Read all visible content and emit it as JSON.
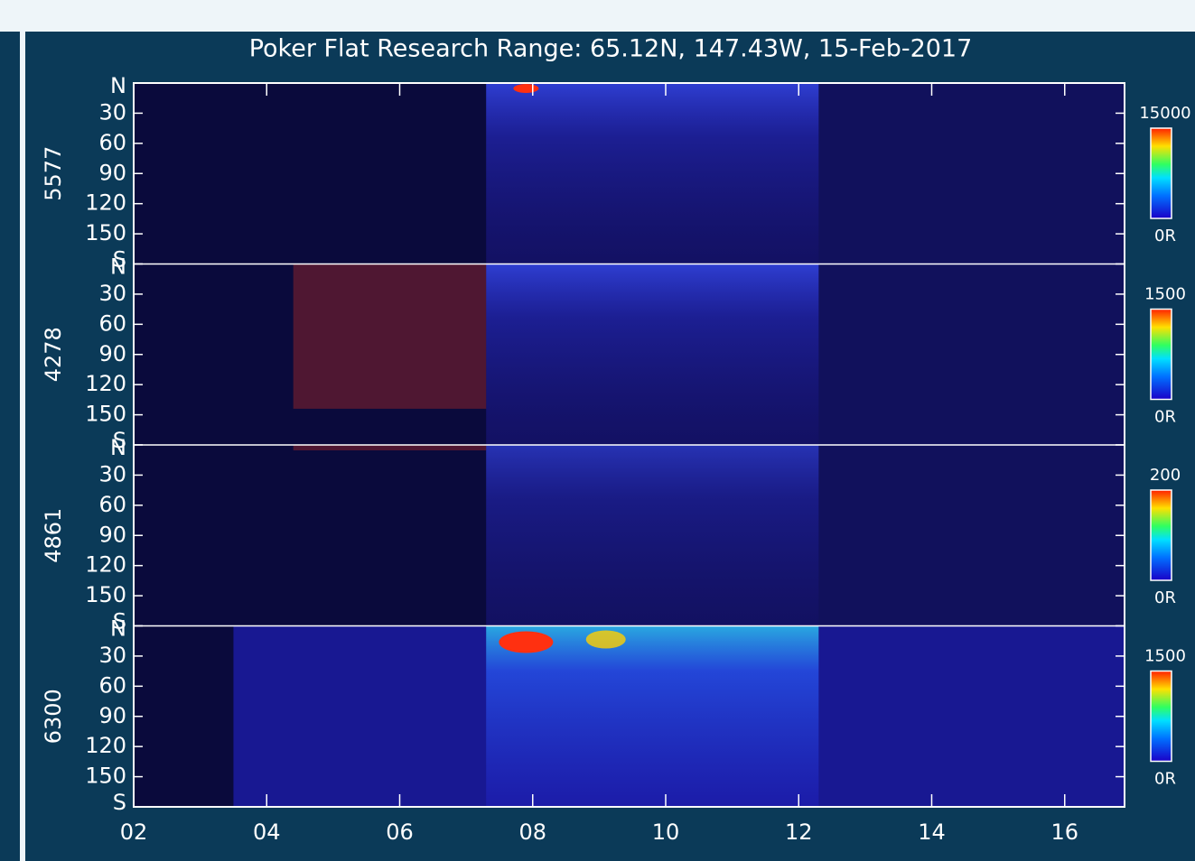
{
  "chart_data": {
    "type": "keogram",
    "title": "Poker Flat Research Range: 65.12N, 147.43W, 15-Feb-2017",
    "xlim": [
      2,
      16.9
    ],
    "xticks": [
      {
        "value": 2,
        "label": "02"
      },
      {
        "value": 4,
        "label": "04"
      },
      {
        "value": 6,
        "label": "06"
      },
      {
        "value": 8,
        "label": "08"
      },
      {
        "value": 10,
        "label": "10"
      },
      {
        "value": 12,
        "label": "12"
      },
      {
        "value": 14,
        "label": "14"
      },
      {
        "value": 16,
        "label": "16"
      }
    ],
    "ylim": [
      0,
      180
    ],
    "yticks": [
      {
        "value": 0,
        "label": "N"
      },
      30,
      60,
      90,
      120,
      150,
      {
        "value": 180,
        "label": "S"
      }
    ],
    "panels": [
      {
        "name": "5577",
        "colorbar_max": 15000,
        "colorbar_min": {
          "value": 0,
          "label": "0R"
        }
      },
      {
        "name": "4278",
        "colorbar_max": 1500,
        "colorbar_min": {
          "value": 0,
          "label": "0R"
        }
      },
      {
        "name": "4861",
        "colorbar_max": 200,
        "colorbar_min": {
          "value": 0,
          "label": "0R"
        }
      },
      {
        "name": "6300",
        "colorbar_max": 1500,
        "colorbar_min": {
          "value": 0,
          "label": "0R"
        }
      }
    ]
  }
}
